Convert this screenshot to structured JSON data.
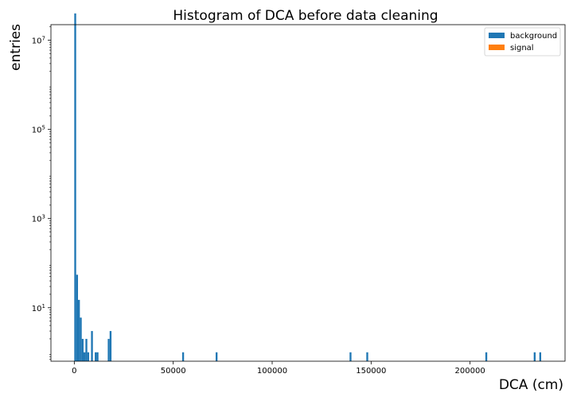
{
  "chart_data": {
    "type": "bar",
    "title": "Histogram of DCA before data cleaning",
    "xlabel": "DCA (cm)",
    "ylabel": "entries",
    "xlim": [
      -11800,
      248000
    ],
    "ylim_log10": [
      -0.2,
      7.35
    ],
    "y_scale": "log",
    "grid": false,
    "legend_position": "top-right",
    "bin_width": 940,
    "x_ticks": [
      {
        "value": 0,
        "label": "0"
      },
      {
        "value": 50000,
        "label": "50000"
      },
      {
        "value": 100000,
        "label": "100000"
      },
      {
        "value": 150000,
        "label": "150000"
      },
      {
        "value": 200000,
        "label": "200000"
      }
    ],
    "y_ticks": [
      {
        "exp": 1,
        "base": "10",
        "sup": "1"
      },
      {
        "exp": 3,
        "base": "10",
        "sup": "3"
      },
      {
        "exp": 5,
        "base": "10",
        "sup": "5"
      },
      {
        "exp": 7,
        "base": "10",
        "sup": "7"
      }
    ],
    "series": [
      {
        "name": "background",
        "color": "#1f77b4",
        "bins": [
          {
            "x": 0,
            "count": 40000000
          },
          {
            "x": 940,
            "count": 55
          },
          {
            "x": 1880,
            "count": 15
          },
          {
            "x": 2820,
            "count": 6
          },
          {
            "x": 3760,
            "count": 2
          },
          {
            "x": 4700,
            "count": 1
          },
          {
            "x": 5640,
            "count": 2
          },
          {
            "x": 6580,
            "count": 1
          },
          {
            "x": 8460,
            "count": 3
          },
          {
            "x": 10340,
            "count": 1
          },
          {
            "x": 11280,
            "count": 1
          },
          {
            "x": 16920,
            "count": 2
          },
          {
            "x": 17860,
            "count": 3
          },
          {
            "x": 54520,
            "count": 1
          },
          {
            "x": 71440,
            "count": 1
          },
          {
            "x": 139120,
            "count": 1
          },
          {
            "x": 147580,
            "count": 1
          },
          {
            "x": 207740,
            "count": 1
          },
          {
            "x": 232180,
            "count": 1
          },
          {
            "x": 235000,
            "count": 1
          }
        ]
      },
      {
        "name": "signal",
        "color": "#ff7f0e",
        "bins": []
      }
    ]
  }
}
